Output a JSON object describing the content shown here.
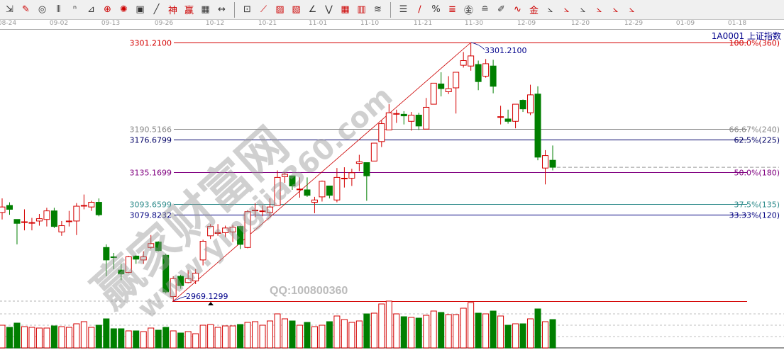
{
  "toolbar": {
    "icons": [
      {
        "name": "cursor-icon",
        "g": "⇲"
      },
      {
        "name": "pen-draw-icon",
        "g": "✎",
        "red": true
      },
      {
        "name": "cycle-icon",
        "g": "◎"
      },
      {
        "name": "parallel-lines-icon",
        "g": "⫴"
      },
      {
        "name": "fibonacci-n-icon",
        "g": "ⁿ"
      },
      {
        "name": "speed-angle-icon",
        "g": "⊿"
      },
      {
        "name": "target-icon",
        "g": "⊕",
        "red": true
      },
      {
        "name": "spiral-icon",
        "g": "✺",
        "red": true
      },
      {
        "name": "square-grid-icon",
        "g": "▣"
      },
      {
        "name": "wave-mark-icon",
        "g": "╱"
      },
      {
        "name": "text-mark-icon",
        "g": "神",
        "red": true
      },
      {
        "name": "win-mark-icon",
        "g": "赢",
        "red": true
      },
      {
        "name": "number-grid-icon",
        "g": "▦"
      },
      {
        "name": "range-measure-icon",
        "g": "↔"
      },
      {
        "sep": true
      },
      {
        "name": "box-icon",
        "g": "⊡"
      },
      {
        "name": "fan-lines-icon",
        "g": "⟋",
        "red": true
      },
      {
        "name": "gann-box-icon",
        "g": "▨",
        "red": true
      },
      {
        "name": "gann-fan-icon",
        "g": "▧",
        "red": true
      },
      {
        "name": "angle-line-icon",
        "g": "∠"
      },
      {
        "name": "zigzag-icon",
        "g": "⋁"
      },
      {
        "name": "grid-red-icon",
        "g": "▦",
        "red": true
      },
      {
        "name": "grid-box-icon",
        "g": "▥",
        "red": true
      },
      {
        "name": "channel-icon",
        "g": "≋"
      },
      {
        "sep": true
      },
      {
        "name": "ruler-icon",
        "g": "☰"
      },
      {
        "name": "percent-line-icon",
        "g": "∕",
        "red": true
      },
      {
        "name": "percent-icon",
        "g": "%"
      },
      {
        "name": "percent-levels-icon",
        "g": "≣",
        "red": true
      },
      {
        "name": "gold-circle-icon",
        "g": "㊎"
      },
      {
        "name": "gold-levels-icon",
        "g": "≘"
      },
      {
        "name": "pencil-icon",
        "g": "✐"
      },
      {
        "name": "wave-icon",
        "g": "∿",
        "red": true
      },
      {
        "name": "gold-icon",
        "g": "金",
        "red": true
      },
      {
        "name": "j-fan-icon",
        "g": "⦣"
      },
      {
        "name": "f-fan-icon",
        "g": "⦣",
        "red": true
      },
      {
        "name": "gold-fan-icon",
        "g": "⦣"
      },
      {
        "name": "shen-fan-icon",
        "g": "⦣",
        "red": true
      },
      {
        "name": "win-fan-icon",
        "g": "⦣",
        "red": true
      },
      {
        "name": "four-fan-icon",
        "g": "⦣",
        "red": true
      }
    ]
  },
  "date_axis": [
    "08-24",
    "09-02",
    "09-13",
    "09-26",
    "10-12",
    "10-21",
    "11-01",
    "11-10",
    "11-21",
    "11-30",
    "12-09",
    "12-20",
    "12-29",
    "01-09",
    "01-18"
  ],
  "symbol": "1A0001  上证指数",
  "watermark": {
    "text": "赢家财富网",
    "url": "www.yingjia360.com",
    "qq": "QQ:100800360"
  },
  "colors": {
    "up": "#d40000",
    "down": "#007f00",
    "high_line": "#e00000"
  },
  "chart_data": {
    "type": "candlestick",
    "ohlc": [
      [
        3083,
        3090,
        3101,
        3074
      ],
      [
        3092,
        3087,
        3096,
        3080
      ],
      [
        3074,
        3069,
        3074,
        3042
      ],
      [
        3071,
        3071,
        3087,
        3060
      ],
      [
        3070,
        3070,
        3076,
        3060
      ],
      [
        3072,
        3075,
        3081,
        3066
      ],
      [
        3074,
        3085,
        3089,
        3065
      ],
      [
        3085,
        3065,
        3089,
        3063
      ],
      [
        3058,
        3066,
        3072,
        3053
      ],
      [
        3072,
        3072,
        3085,
        3065
      ],
      [
        3072,
        3091,
        3095,
        3054
      ],
      [
        3092,
        3092,
        3106,
        3087
      ],
      [
        3090,
        3096,
        3098,
        3085
      ],
      [
        3096,
        3080,
        3101,
        3078
      ],
      [
        3038,
        3022,
        3042,
        3001
      ],
      [
        3026,
        3025,
        3031,
        3010
      ],
      [
        3009,
        3004,
        3017,
        2996
      ],
      [
        3006,
        3026,
        3027,
        3005
      ],
      [
        3027,
        3023,
        3028,
        3017
      ],
      [
        3022,
        3026,
        3033,
        3017
      ],
      [
        3038,
        3043,
        3054,
        3036
      ],
      [
        3045,
        3034,
        3046,
        3033
      ],
      [
        3028,
        2981,
        3030,
        2979
      ],
      [
        2975,
        2998,
        3001,
        2969.13
      ],
      [
        3001,
        2989,
        3003,
        2985
      ],
      [
        2993,
        2998,
        3009,
        2992
      ],
      [
        2995,
        3005,
        3010,
        2991
      ],
      [
        3022,
        3046,
        3048,
        3015
      ],
      [
        3053,
        3065,
        3068,
        3049
      ],
      [
        3057,
        3057,
        3068,
        3053
      ],
      [
        3057,
        3063,
        3066,
        3051
      ],
      [
        3058,
        3064,
        3067,
        3045
      ],
      [
        3065,
        3042,
        3066,
        3036
      ],
      [
        3038,
        3084,
        3086,
        3037
      ],
      [
        3086,
        3086,
        3095,
        3077
      ],
      [
        3085,
        3085,
        3092,
        3078
      ],
      [
        3083,
        3090,
        3101,
        3078
      ],
      [
        3092,
        3128,
        3137,
        3092
      ],
      [
        3129,
        3132,
        3135,
        3121
      ],
      [
        3130,
        3117,
        3130,
        3112
      ],
      [
        3113,
        3113,
        3128,
        3102
      ],
      [
        3112,
        3105,
        3128,
        3103
      ],
      [
        3096,
        3099,
        3103,
        3082
      ],
      [
        3103,
        3123,
        3124,
        3097
      ],
      [
        3117,
        3105,
        3117,
        3101
      ],
      [
        3099,
        3128,
        3140,
        3096
      ],
      [
        3127,
        3127,
        3141,
        3115
      ],
      [
        3127,
        3134,
        3139,
        3117
      ],
      [
        3146,
        3148,
        3157,
        3136
      ],
      [
        3147,
        3130,
        3147,
        3098
      ],
      [
        3149,
        3172,
        3172,
        3149
      ],
      [
        3174,
        3197,
        3201,
        3167
      ],
      [
        3189,
        3211,
        3222,
        3189
      ],
      [
        3210,
        3210,
        3215,
        3198
      ],
      [
        3209,
        3207,
        3213,
        3196
      ],
      [
        3200,
        3208,
        3212,
        3188
      ],
      [
        3208,
        3194,
        3211,
        3189
      ],
      [
        3190,
        3218,
        3230,
        3190
      ],
      [
        3222,
        3249,
        3249,
        3222
      ],
      [
        3248,
        3242,
        3263,
        3232
      ],
      [
        3238,
        3242,
        3258,
        3235
      ],
      [
        3243,
        3263,
        3263,
        3210
      ],
      [
        3272,
        3278,
        3289,
        3269
      ],
      [
        3271,
        3284,
        3301.21,
        3265
      ],
      [
        3273,
        3251,
        3278,
        3240
      ],
      [
        3258,
        3274,
        3280,
        3256
      ],
      [
        3271,
        3245,
        3279,
        3236
      ],
      [
        3206,
        3206,
        3220,
        3196
      ],
      [
        3203,
        3200,
        3215,
        3197
      ],
      [
        3200,
        3222,
        3222,
        3191
      ],
      [
        3227,
        3216,
        3228,
        3212
      ],
      [
        3211,
        3234,
        3247,
        3208
      ],
      [
        3235,
        3154,
        3245,
        3150
      ],
      [
        3140,
        3156,
        3163,
        3119
      ],
      [
        3150,
        3141,
        3169,
        3137
      ]
    ],
    "volume_relative": [
      32,
      29,
      35,
      30,
      29,
      28,
      28,
      31,
      30,
      29,
      34,
      37,
      29,
      32,
      41,
      27,
      27,
      24,
      24,
      23,
      28,
      25,
      29,
      24,
      21,
      23,
      20,
      32,
      33,
      29,
      31,
      31,
      33,
      36,
      37,
      32,
      38,
      48,
      41,
      38,
      32,
      36,
      30,
      32,
      37,
      45,
      40,
      36,
      38,
      48,
      49,
      62,
      66,
      48,
      44,
      43,
      42,
      46,
      52,
      50,
      47,
      47,
      56,
      64,
      49,
      48,
      52,
      45,
      32,
      34,
      34,
      41,
      55,
      37,
      40
    ],
    "ylim": [
      2969.1299,
      3301.21
    ],
    "fibonacci": [
      {
        "price": "3301.2100",
        "label": "100.0%(360)",
        "color": "#d40000",
        "v": 3301.21
      },
      {
        "price": "3190.5166",
        "label": "66.67%(240)",
        "color": "#888888",
        "v": 3190.5166
      },
      {
        "price": "3176.6799",
        "label": "62.5%(225)",
        "color": "#000066",
        "v": 3176.6799
      },
      {
        "price": "3135.1699",
        "label": "50.0%(180)",
        "color": "#800080",
        "v": 3135.1699
      },
      {
        "price": "3093.6599",
        "label": "37.5%(135)",
        "color": "#2e8b8b",
        "v": 3093.6599
      },
      {
        "price": "3079.8232",
        "label": "33.33%(120)",
        "color": "#000080",
        "v": 3079.8232
      }
    ],
    "high_label": "3301.2100",
    "low_label": "2969.1299",
    "low_value": 2969.1299,
    "last_value": 3141
  }
}
